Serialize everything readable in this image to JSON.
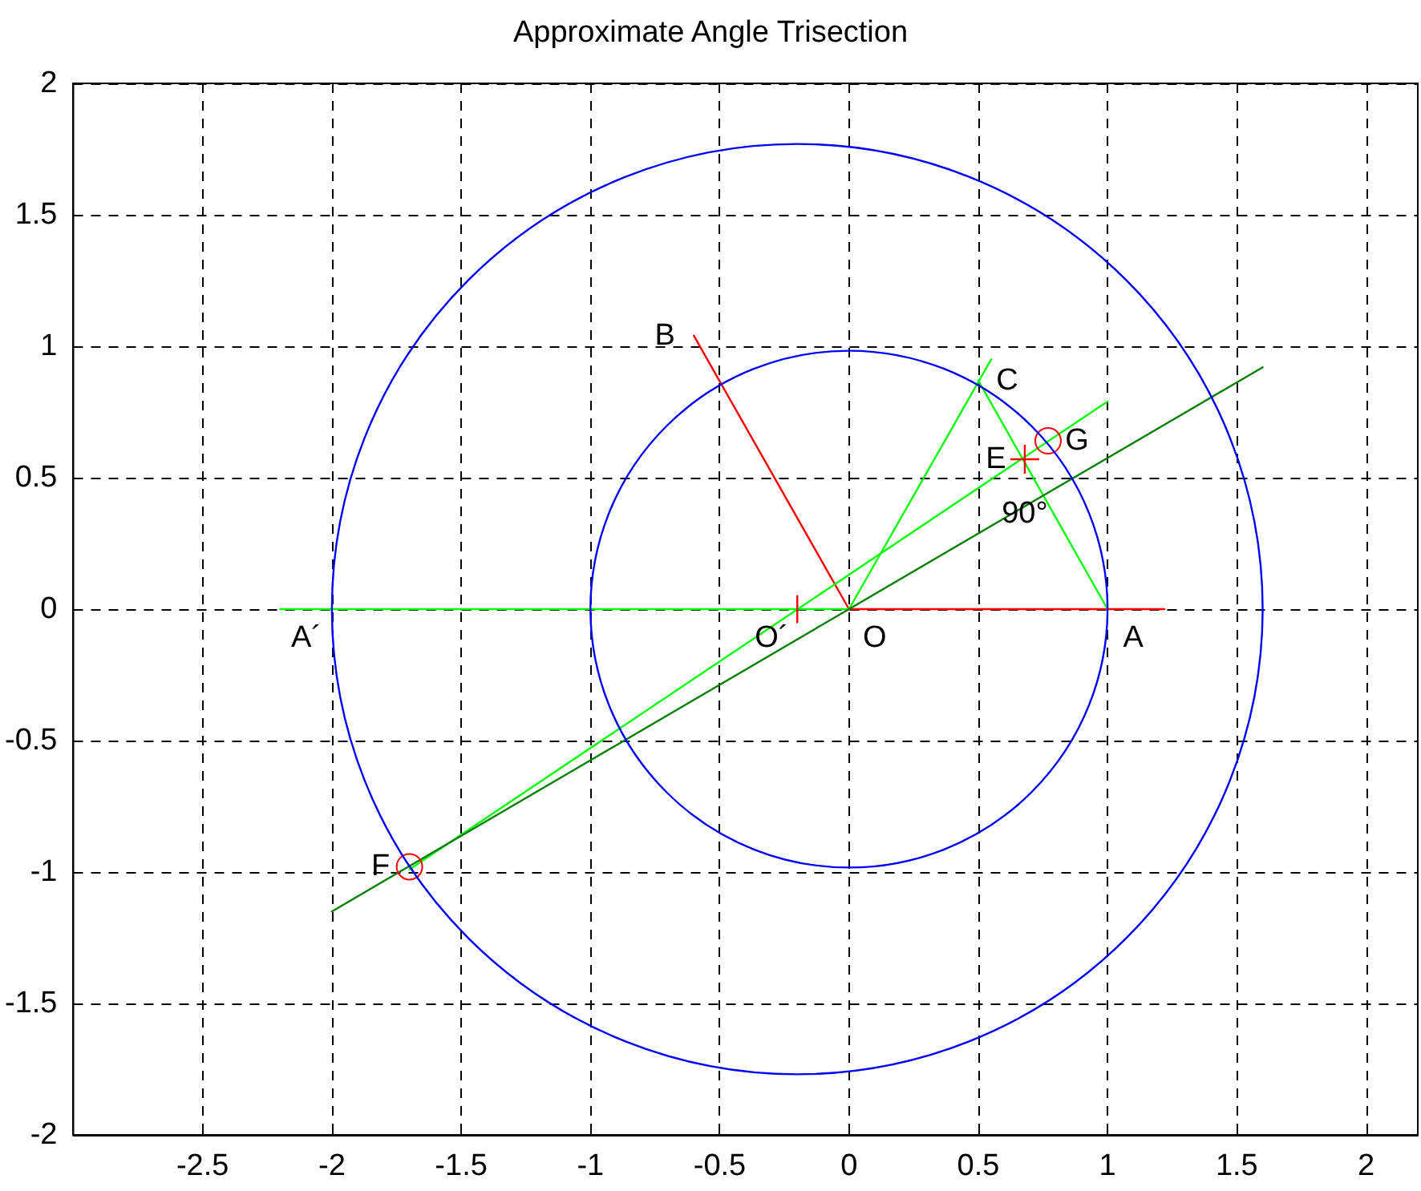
{
  "chart_data": {
    "type": "line",
    "title": "Approximate Angle Trisection",
    "xlim": [
      -3,
      2.2
    ],
    "ylim": [
      -2,
      2
    ],
    "xticks": [
      -2.5,
      -2,
      -1.5,
      -1,
      -0.5,
      0,
      0.5,
      1,
      1.5,
      2
    ],
    "yticks": [
      -2,
      -1.5,
      -1,
      -0.5,
      0,
      0.5,
      1,
      1.5,
      2
    ],
    "grid": true,
    "series": [
      {
        "color": "#ff0000",
        "x": [
          0,
          1.22
        ],
        "values": [
          0,
          0
        ]
      },
      {
        "color": "#ff0000",
        "x": [
          0,
          -0.6
        ],
        "values": [
          0,
          1.04
        ]
      },
      {
        "color": "#00ff00",
        "x": [
          -2.2,
          0
        ],
        "values": [
          0,
          0
        ]
      },
      {
        "color": "#00ff00",
        "x": [
          0,
          0.55
        ],
        "values": [
          0,
          0.95
        ]
      },
      {
        "color": "#00ff00",
        "x": [
          0.5,
          1
        ],
        "values": [
          0.87,
          0
        ]
      },
      {
        "color": "#00ff00",
        "x": [
          -1.7,
          1
        ],
        "values": [
          -0.99,
          0.79
        ]
      },
      {
        "color": "#008000",
        "x": [
          -2,
          1.6
        ],
        "values": [
          -1.15,
          0.92
        ]
      },
      {
        "color": "#ff0000",
        "x": [
          -0.2,
          -0.2
        ],
        "values": [
          -0.05,
          0.05
        ]
      },
      {
        "type": "scatter",
        "color": "#ff0000",
        "marker": "circle",
        "x": [
          -1.7,
          0.77
        ],
        "values": [
          -0.98,
          0.64
        ]
      },
      {
        "type": "scatter",
        "color": "#ff0000",
        "marker": "cross",
        "x": [
          0.68
        ],
        "values": [
          0.57
        ]
      }
    ],
    "annotations": [
      {
        "text": "A´",
        "x": -2,
        "y": 0
      },
      {
        "text": "A",
        "x": 1,
        "y": 0
      },
      {
        "text": "O",
        "x": 0,
        "y": 0
      },
      {
        "text": "O´",
        "x": -0.2,
        "y": 0
      },
      {
        "text": "B",
        "x": -0.6,
        "y": 1.04
      },
      {
        "text": "C",
        "x": 0.5,
        "y": 0.87
      },
      {
        "text": "E",
        "x": 0.68,
        "y": 0.57
      },
      {
        "text": "G",
        "x": 0.77,
        "y": 0.64
      },
      {
        "text": "F",
        "x": -1.7,
        "y": -0.98
      },
      {
        "text": "90°",
        "x": 0.68,
        "y": 0.57
      }
    ]
  }
}
